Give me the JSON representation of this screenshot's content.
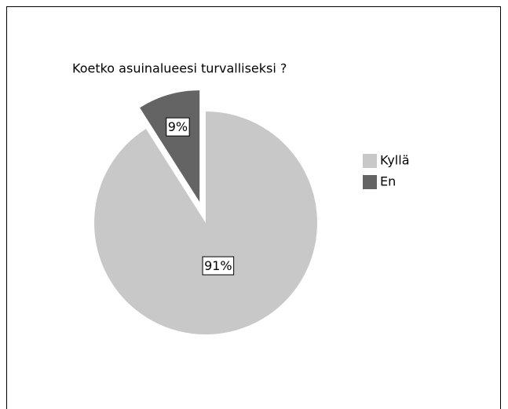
{
  "chart_data": {
    "type": "pie",
    "title": "Koetko asuinalueesi turvalliseksi ?",
    "categories": [
      "Kyllä",
      "En"
    ],
    "values": [
      91,
      9
    ],
    "value_labels": [
      "91%",
      "9%"
    ],
    "colors": [
      "#c8c8c8",
      "#646464"
    ],
    "legend": "right"
  }
}
